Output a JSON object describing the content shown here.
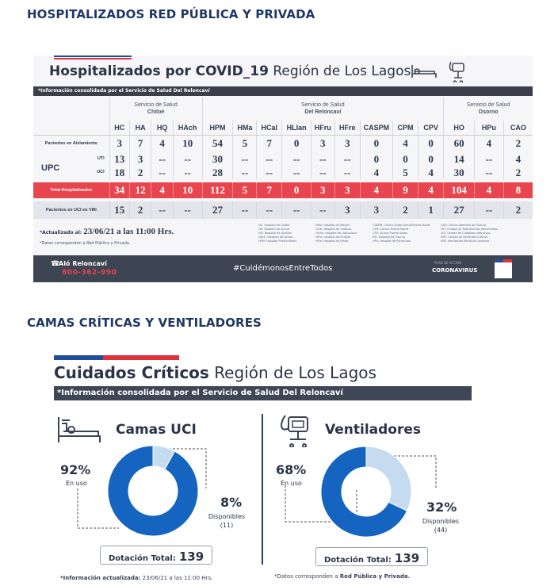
{
  "sections": {
    "hospitalized_title": "HOSPITALIZADOS RED PÚBLICA Y PRIVADA",
    "critical_title": "CAMAS CRÍTICAS Y VENTILADORES"
  },
  "card1": {
    "title_bold": "Hospitalizados por COVID_19",
    "title_light": "Región de Los Lagos",
    "info_bar": "*Información consolidada por el Servicio de Salud Del Reloncaví",
    "services": [
      {
        "line1": "Servicio de Salud",
        "line2": "Chiloé"
      },
      {
        "line1": "Servicio de Salud",
        "line2": "Del Reloncaví"
      },
      {
        "line1": "Servicio de Salud",
        "line2": "Osorno"
      }
    ],
    "columns": [
      "HC",
      "HA",
      "HQ",
      "HAch",
      "HPM",
      "HMa",
      "HCal",
      "HLlan",
      "HFru",
      "HFre",
      "CASPM",
      "CPM",
      "CPV",
      "HO",
      "HPu",
      "CAO"
    ],
    "rows": {
      "aislamiento": {
        "label": "Pacientes en Aislamiento",
        "values": [
          "3",
          "7",
          "4",
          "10",
          "54",
          "5",
          "7",
          "0",
          "3",
          "3",
          "0",
          "4",
          "0",
          "60",
          "4",
          "2"
        ]
      },
      "upc_label": "UPC",
      "uti": {
        "label": "UTI",
        "values": [
          "13",
          "3",
          "--",
          "--",
          "30",
          "--",
          "--",
          "--",
          "--",
          "--",
          "0",
          "0",
          "0",
          "14",
          "--",
          "4"
        ]
      },
      "uci": {
        "label": "UCI",
        "values": [
          "18",
          "2",
          "--",
          "--",
          "28",
          "--",
          "--",
          "--",
          "--",
          "--",
          "4",
          "5",
          "4",
          "30",
          "--",
          "2"
        ]
      },
      "total": {
        "label": "Total Hospitalizados",
        "values": [
          "34",
          "12",
          "4",
          "10",
          "112",
          "5",
          "7",
          "0",
          "3",
          "3",
          "4",
          "9",
          "4",
          "104",
          "4",
          "8"
        ]
      },
      "vmi": {
        "label": "Pacientes en UCI en VMI",
        "values": [
          "15",
          "2",
          "--",
          "--",
          "27",
          "--",
          "--",
          "--",
          "--",
          "3",
          "3",
          "2",
          "1",
          "27",
          "--",
          "2"
        ]
      }
    },
    "updated_prefix": "*Actualizado al:",
    "updated_value": "23/06/21 a las 11:00 Hrs.",
    "note": "*Datos corresponden a Red Pública y Privada.",
    "legend_cols": [
      [
        "HC: Hospital de Castro",
        "HA: Hospital de Ancud",
        "HQ: Hospital de Quellón",
        "HAch: Hospital de Achao",
        "HPM: Hospital Puerto Montt"
      ],
      [
        "HMa: Hospital de Maullín",
        "HCal: Hospital de Calbuco",
        "HLlan: Hospital de Llanquihue",
        "HFru: Hospital de Frutillar",
        "HFre: Hospital de Fresia"
      ],
      [
        "CASPM: Clínica Andes Salud Puerto Montt",
        "CPM: Clínica Puerto Montt",
        "CPV: Clínica Puerto Varas",
        "HO: Hospital de Osorno",
        "HPu: Hospital de Purranque"
      ],
      [
        "CAO: Clínica Alemana de Osorno",
        "UTI: Unidad de Tratamientos Intermedios",
        "UCI: Unidad de Cuidados Intensivos",
        "UPC: Unidad de Pacientes Críticos",
        "VMI: Ventilación Mecánica Invasiva"
      ]
    ],
    "footer": {
      "alo": "Aló Reloncaví",
      "phone": "800-362-990",
      "hashtag": "#CuidémonosEntreTodos",
      "plan": "PLAN DE ACCIÓN",
      "coronavirus": "CORONAVIRUS"
    }
  },
  "card2": {
    "title_bold": "Cuidados Críticos",
    "title_light": "Región de Los Lagos",
    "info_bar": "*Información consolidada por el Servicio de Salud Del Reloncaví",
    "camas": {
      "title": "Camas UCI",
      "in_use_pct": "92%",
      "in_use_label": "En uso",
      "available_pct": "8%",
      "available_label": "Disponibles",
      "available_count": "(11)",
      "total_label": "Dotación Total:",
      "total_value": "139"
    },
    "ventiladores": {
      "title": "Ventiladores",
      "in_use_pct": "68%",
      "in_use_label": "En uso",
      "available_pct": "32%",
      "available_label": "Disponibles",
      "available_count": "(44)",
      "total_label": "Dotación Total:",
      "total_value": "139"
    },
    "footnote_left_prefix": "*Información actualizada:",
    "footnote_left_value": "23/06/21 a las 11:00 Hrs.",
    "footnote_right_prefix": "*Datos corresponden a",
    "footnote_right_bold": "Red Pública y Privada."
  },
  "chart_data": [
    {
      "type": "pie",
      "title": "Camas UCI",
      "categories": [
        "En uso",
        "Disponibles"
      ],
      "values": [
        92,
        8
      ],
      "colors": [
        "#1565c0",
        "#c5dcf0"
      ]
    },
    {
      "type": "pie",
      "title": "Ventiladores",
      "categories": [
        "En uso",
        "Disponibles"
      ],
      "values": [
        68,
        32
      ],
      "colors": [
        "#1565c0",
        "#c5dcf0"
      ]
    }
  ],
  "colors": {
    "navy": "#1f3864",
    "total_row": "#e8454e",
    "donut_used": "#1565c0",
    "donut_free": "#c5dcf0",
    "dark_bar": "#3a3f4b"
  }
}
